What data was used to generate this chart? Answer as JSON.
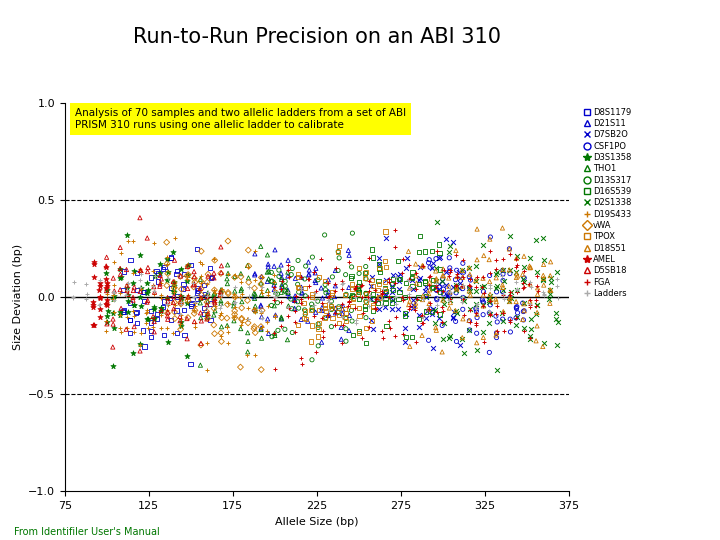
{
  "title": "Run-to-Run Precision on an ABI 310",
  "xlabel": "Allele Size (bp)",
  "ylabel": "Size Deviation (bp)",
  "annotation": "Analysis of 70 samples and two allelic ladders from a set of ABI\nPRISM 310 runs using one allelic ladder to calibrate",
  "footer": "From Identifiler User's Manual",
  "xlim": [
    75,
    375
  ],
  "ylim": [
    -1,
    1
  ],
  "xticks": [
    75,
    125,
    175,
    225,
    275,
    325,
    375
  ],
  "yticks": [
    -1,
    -0.5,
    0,
    0.5,
    1
  ],
  "hline_y": 0,
  "dashed_lines": [
    -0.5,
    0.5
  ],
  "series": [
    {
      "name": "D8S1179",
      "color": "#0000CC",
      "marker": "s",
      "xmin": 110,
      "xmax": 162,
      "step": 4,
      "n_per": 5,
      "ystd": 0.13
    },
    {
      "name": "D21S11",
      "color": "#0000CC",
      "marker": "^",
      "xmin": 188,
      "xmax": 244,
      "step": 4,
      "n_per": 5,
      "ystd": 0.13
    },
    {
      "name": "D7SB2O",
      "color": "#0000CC",
      "marker": "x",
      "xmin": 258,
      "xmax": 310,
      "step": 4,
      "n_per": 5,
      "ystd": 0.13
    },
    {
      "name": "CSF1PO",
      "color": "#0000CC",
      "marker": "o",
      "xmin": 292,
      "xmax": 348,
      "step": 4,
      "n_per": 5,
      "ystd": 0.13
    },
    {
      "name": "D3S1358",
      "color": "#007700",
      "marker": "*",
      "xmin": 100,
      "xmax": 148,
      "step": 4,
      "n_per": 5,
      "ystd": 0.13
    },
    {
      "name": "THO1",
      "color": "#007700",
      "marker": "^",
      "xmin": 156,
      "xmax": 208,
      "step": 4,
      "n_per": 5,
      "ystd": 0.13
    },
    {
      "name": "D13S317",
      "color": "#007700",
      "marker": "o",
      "xmin": 198,
      "xmax": 254,
      "step": 4,
      "n_per": 5,
      "ystd": 0.13
    },
    {
      "name": "D16S539",
      "color": "#007700",
      "marker": "s",
      "xmin": 246,
      "xmax": 298,
      "step": 4,
      "n_per": 5,
      "ystd": 0.13
    },
    {
      "name": "D2S1338",
      "color": "#007700",
      "marker": "x",
      "xmin": 296,
      "xmax": 368,
      "step": 4,
      "n_per": 5,
      "ystd": 0.13
    },
    {
      "name": "D19S433",
      "color": "#CC7700",
      "marker": "+",
      "xmin": 100,
      "xmax": 200,
      "step": 4,
      "n_per": 5,
      "ystd": 0.13
    },
    {
      "name": "vWA",
      "color": "#CC7700",
      "marker": "D",
      "xmin": 136,
      "xmax": 192,
      "step": 4,
      "n_per": 5,
      "ystd": 0.13
    },
    {
      "name": "TPOX",
      "color": "#CC7700",
      "marker": "s",
      "xmin": 214,
      "xmax": 266,
      "step": 4,
      "n_per": 5,
      "ystd": 0.13
    },
    {
      "name": "D18S51",
      "color": "#CC7700",
      "marker": "^",
      "xmin": 280,
      "xmax": 364,
      "step": 4,
      "n_per": 5,
      "ystd": 0.13
    },
    {
      "name": "AMEL",
      "color": "#CC0000",
      "marker": "*",
      "xmin": 92,
      "xmax": 100,
      "step": 4,
      "n_per": 8,
      "ystd": 0.13
    },
    {
      "name": "D5SB18",
      "color": "#CC0000",
      "marker": "^",
      "xmin": 100,
      "xmax": 168,
      "step": 4,
      "n_per": 5,
      "ystd": 0.13
    },
    {
      "name": "FGA",
      "color": "#CC0000",
      "marker": "+",
      "xmin": 200,
      "xmax": 356,
      "step": 4,
      "n_per": 5,
      "ystd": 0.13
    },
    {
      "name": "Ladders",
      "color": "#AAAAAA",
      "marker": "+",
      "xmin": 80,
      "xmax": 368,
      "step": 8,
      "n_per": 3,
      "ystd": 0.05
    }
  ],
  "background_color": "#FFFFFF",
  "annotation_bg": "#FFFF00",
  "seed": 42
}
